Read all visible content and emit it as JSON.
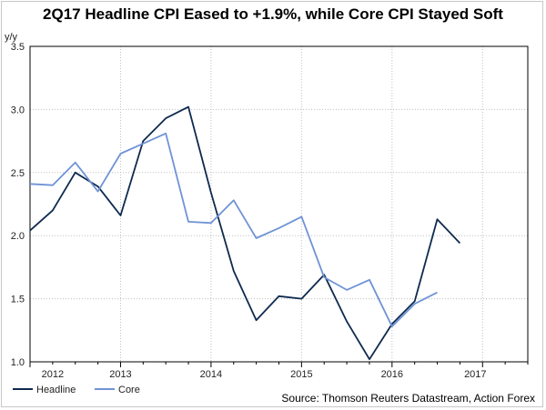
{
  "chart_data": {
    "type": "line",
    "title": "2Q17 Headline CPI Eased to +1.9%, while Core CPI Stayed Soft",
    "unit_label": "y/y",
    "source": "Source: Thomson Reuters Datastream, Action Forex",
    "ylim": [
      1.0,
      3.5
    ],
    "yticks": [
      "3.5",
      "3.0",
      "2.5",
      "2.0",
      "1.5",
      "1.0"
    ],
    "yticks_values": [
      3.5,
      3.0,
      2.5,
      2.0,
      1.5,
      1.0
    ],
    "xlim": [
      2012.0,
      2017.5
    ],
    "xticks_labels": [
      "2012",
      "2013",
      "2014",
      "2015",
      "2016",
      "2017"
    ],
    "xticks_values": [
      2012.25,
      2013.0,
      2014.0,
      2015.0,
      2016.0,
      2016.92
    ],
    "grid": true,
    "legend_position": "bottom-left",
    "series": [
      {
        "name": "Headline",
        "color": "#0f2a4f",
        "x": [
          2012.0,
          2012.25,
          2012.5,
          2012.75,
          2013.0,
          2013.25,
          2013.5,
          2013.75,
          2014.0,
          2014.25,
          2014.5,
          2014.75,
          2015.0,
          2015.25,
          2015.5,
          2015.75,
          2016.0,
          2016.25,
          2016.5,
          2016.75,
          2017.0
        ],
        "y": [
          2.04,
          2.2,
          2.5,
          2.39,
          2.16,
          2.75,
          2.93,
          3.02,
          2.34,
          1.72,
          1.33,
          1.52,
          1.5,
          1.69,
          1.32,
          1.02,
          1.3,
          1.48,
          2.13,
          1.94,
          null
        ]
      },
      {
        "name": "Core",
        "color": "#6f93d6",
        "x": [
          2012.0,
          2012.25,
          2012.5,
          2012.75,
          2013.0,
          2013.25,
          2013.5,
          2013.75,
          2014.0,
          2014.25,
          2014.5,
          2014.75,
          2015.0,
          2015.25,
          2015.5,
          2015.75,
          2016.0,
          2016.25,
          2016.5,
          2016.75,
          2017.0
        ],
        "y": [
          2.41,
          2.4,
          2.58,
          2.35,
          2.65,
          2.73,
          2.81,
          2.11,
          2.1,
          2.28,
          1.98,
          2.06,
          2.15,
          1.67,
          1.57,
          1.65,
          1.28,
          1.46,
          1.55,
          null,
          null
        ]
      }
    ]
  }
}
